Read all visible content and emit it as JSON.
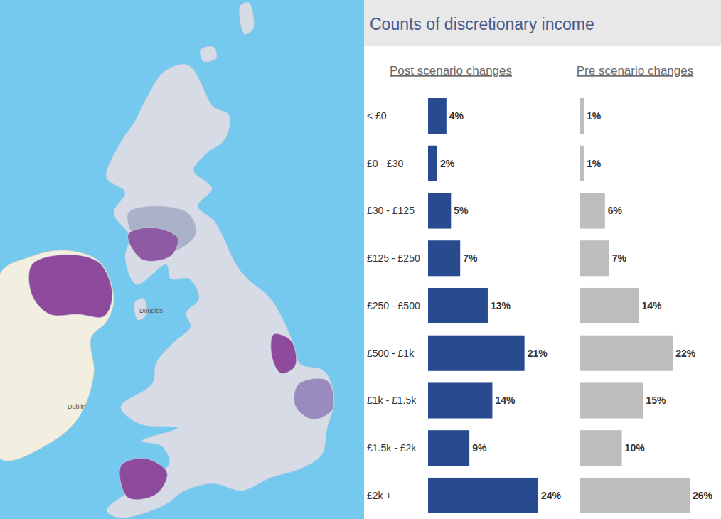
{
  "title": "Counts of discretionary income",
  "map": {
    "labels": [
      "Dublin",
      "Douglas"
    ]
  },
  "chart_data": [
    {
      "type": "bar",
      "title": "Post scenario changes",
      "orientation": "horizontal",
      "categories": [
        "< £0",
        "£0 - £30",
        "£30 - £125",
        "£125 - £250",
        "£250 - £500",
        "£500 - £1k",
        "£1k - £1.5k",
        "£1.5k - £2k",
        "£2k +"
      ],
      "values": [
        4,
        2,
        5,
        7,
        13,
        21,
        14,
        9,
        24
      ],
      "value_labels": [
        "4%",
        "2%",
        "5%",
        "7%",
        "13%",
        "21%",
        "14%",
        "9%",
        "24%"
      ],
      "color": "#284a8e",
      "data_labels": true,
      "tick_labels": "y"
    },
    {
      "type": "bar",
      "title": "Pre scenario changes",
      "orientation": "horizontal",
      "categories": [
        "< £0",
        "£0 - £30",
        "£30 - £125",
        "£125 - £250",
        "£250 - £500",
        "£500 - £1k",
        "£1k - £1.5k",
        "£1.5k - £2k",
        "£2k +"
      ],
      "values": [
        1,
        1,
        6,
        7,
        14,
        22,
        15,
        10,
        26
      ],
      "value_labels": [
        "1%",
        "1%",
        "6%",
        "7%",
        "14%",
        "22%",
        "15%",
        "10%",
        "26%"
      ],
      "color": "#bdbdbd",
      "data_labels": true,
      "tick_labels": false
    }
  ]
}
